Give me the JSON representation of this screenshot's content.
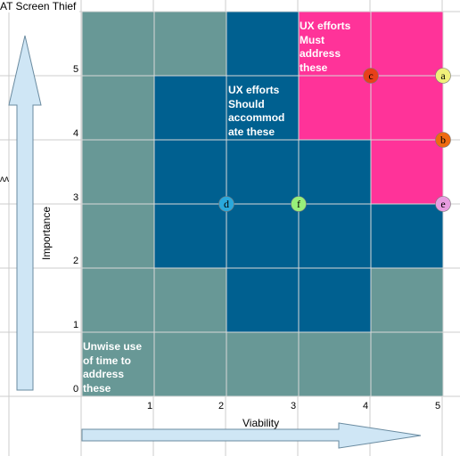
{
  "window": {
    "title": "AT Screen Thief"
  },
  "axes": {
    "x_label": "Viability",
    "y_label": "Importance",
    "x_ticks": [
      "1",
      "2",
      "3",
      "4",
      "5"
    ],
    "y_ticks": [
      "0",
      "1",
      "2",
      "3",
      "4",
      "5"
    ]
  },
  "colors": {
    "gray_cell": "#689896",
    "blue_cell": "#006090",
    "pink_cell": "#ff3399",
    "arrow_fill": "#cfe6f5",
    "arrow_stroke": "#6a8ba0",
    "grid_line": "#cccccc"
  },
  "regions": {
    "must": "UX efforts Must address these",
    "should": "UX efforts Should accommod ate these",
    "unwise": "Unwise use of time to address these"
  },
  "region_lines": {
    "must": [
      "UX efforts",
      "Must",
      "address",
      "these"
    ],
    "should": [
      "UX efforts",
      "Should",
      "accommod",
      "ate these"
    ],
    "unwise": [
      "Unwise use",
      "of time to",
      "address",
      "these"
    ]
  },
  "stray_mark": "ʌʌ",
  "chart_data": {
    "type": "scatter",
    "xlabel": "Viability",
    "ylabel": "Importance",
    "xlim": [
      0,
      5
    ],
    "ylim": [
      0,
      5
    ],
    "grid": [
      [
        "gray",
        "gray",
        "blue",
        "pink",
        "pink"
      ],
      [
        "gray",
        "blue",
        "blue",
        "pink",
        "pink"
      ],
      [
        "gray",
        "blue",
        "blue",
        "blue",
        "pink"
      ],
      [
        "gray",
        "blue",
        "blue",
        "blue",
        "blue"
      ],
      [
        "gray",
        "gray",
        "blue",
        "blue",
        "gray"
      ],
      [
        "gray",
        "gray",
        "gray",
        "gray",
        "gray"
      ]
    ],
    "points": [
      {
        "label": "a",
        "x": 5,
        "y": 5,
        "color": "#f0f07a"
      },
      {
        "label": "b",
        "x": 5,
        "y": 4,
        "color": "#ee6a10"
      },
      {
        "label": "c",
        "x": 4,
        "y": 5,
        "color": "#e8401a"
      },
      {
        "label": "d",
        "x": 2,
        "y": 3,
        "color": "#2aa8dc"
      },
      {
        "label": "e",
        "x": 5,
        "y": 3,
        "color": "#e89ce0"
      },
      {
        "label": "f",
        "x": 3,
        "y": 3,
        "color": "#98f07a"
      }
    ]
  }
}
